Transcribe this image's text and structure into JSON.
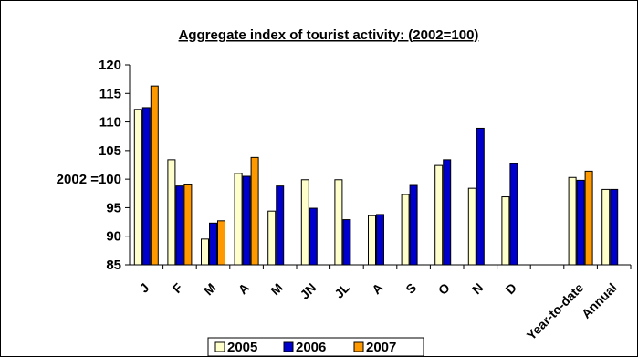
{
  "chart_data": {
    "type": "bar",
    "title": "Aggregate index of tourist activity: (2002=100)",
    "ylabel": "2002 =",
    "ylim": [
      85,
      120
    ],
    "yticks": [
      85,
      90,
      95,
      100,
      105,
      110,
      115,
      120
    ],
    "ytick_labels": [
      "85",
      "90",
      "95",
      "2002 =100",
      "105",
      "110",
      "115",
      "120"
    ],
    "grid": false,
    "legend_position": "bottom-center",
    "categories": [
      "J",
      "F",
      "M",
      "A",
      "M",
      "JN",
      "JL",
      "A",
      "S",
      "O",
      "N",
      "D",
      "",
      "Year-to-date",
      "Annual"
    ],
    "series": [
      {
        "name": "2005",
        "color": "#ffffcc",
        "values": [
          112.2,
          103.4,
          89.5,
          101.0,
          94.4,
          99.9,
          99.9,
          93.6,
          97.3,
          102.4,
          98.4,
          96.9,
          null,
          100.3,
          98.2
        ]
      },
      {
        "name": "2006",
        "color": "#0000cc",
        "values": [
          112.5,
          98.8,
          92.3,
          100.5,
          98.8,
          94.9,
          92.9,
          93.8,
          98.9,
          103.4,
          108.9,
          102.7,
          null,
          99.8,
          98.2
        ]
      },
      {
        "name": "2007",
        "color": "#ff9900",
        "values": [
          116.3,
          99.0,
          92.7,
          103.8,
          null,
          null,
          null,
          null,
          null,
          null,
          null,
          null,
          null,
          101.4,
          null
        ]
      }
    ]
  }
}
